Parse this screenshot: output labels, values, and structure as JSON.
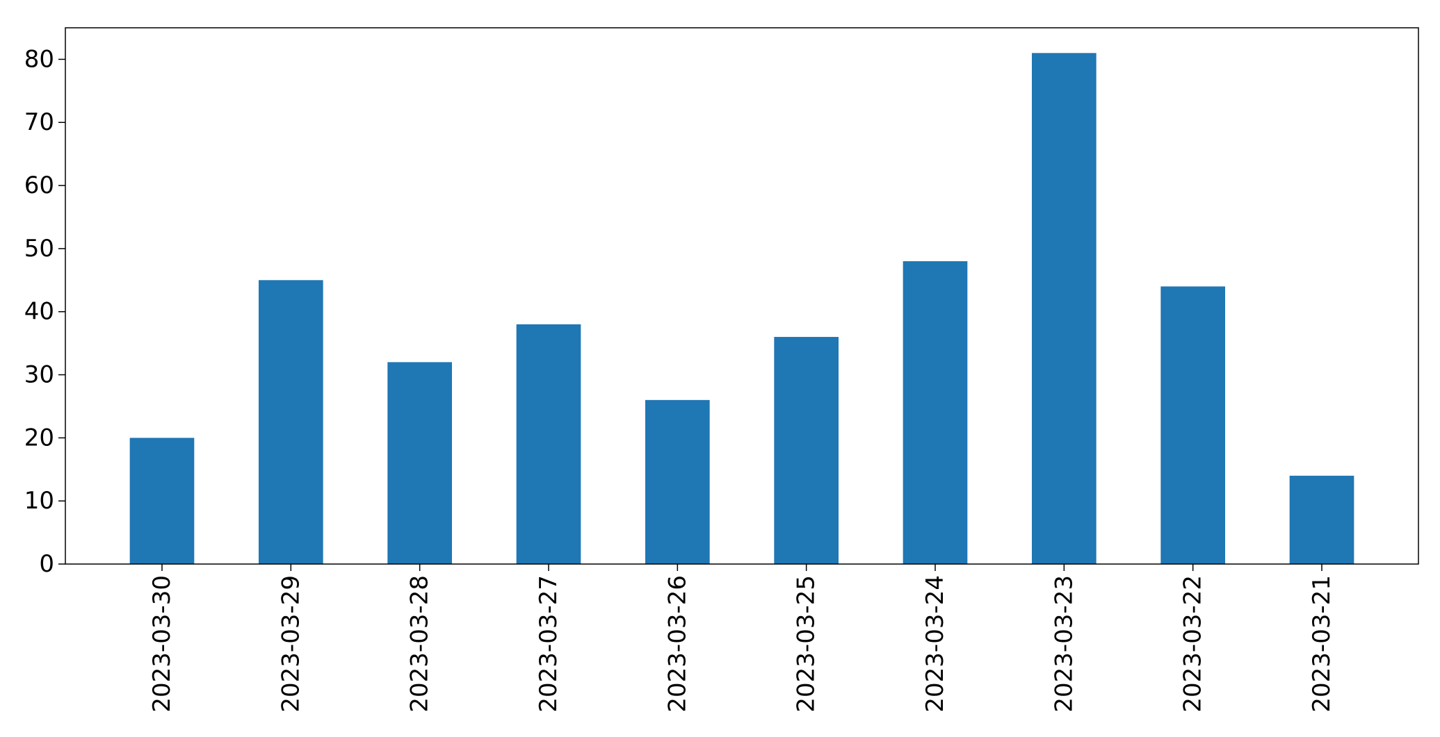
{
  "chart_data": {
    "type": "bar",
    "categories": [
      "2023-03-30",
      "2023-03-29",
      "2023-03-28",
      "2023-03-27",
      "2023-03-26",
      "2023-03-25",
      "2023-03-24",
      "2023-03-23",
      "2023-03-22",
      "2023-03-21"
    ],
    "values": [
      20,
      45,
      32,
      38,
      26,
      36,
      48,
      81,
      44,
      14
    ],
    "title": "",
    "xlabel": "",
    "ylabel": "",
    "ylim": [
      0,
      85
    ],
    "yticks": [
      0,
      10,
      20,
      30,
      40,
      50,
      60,
      70,
      80
    ],
    "grid": false,
    "legend": "none",
    "bar_color": "#1f77b4",
    "xtick_rotation": "vertical"
  }
}
